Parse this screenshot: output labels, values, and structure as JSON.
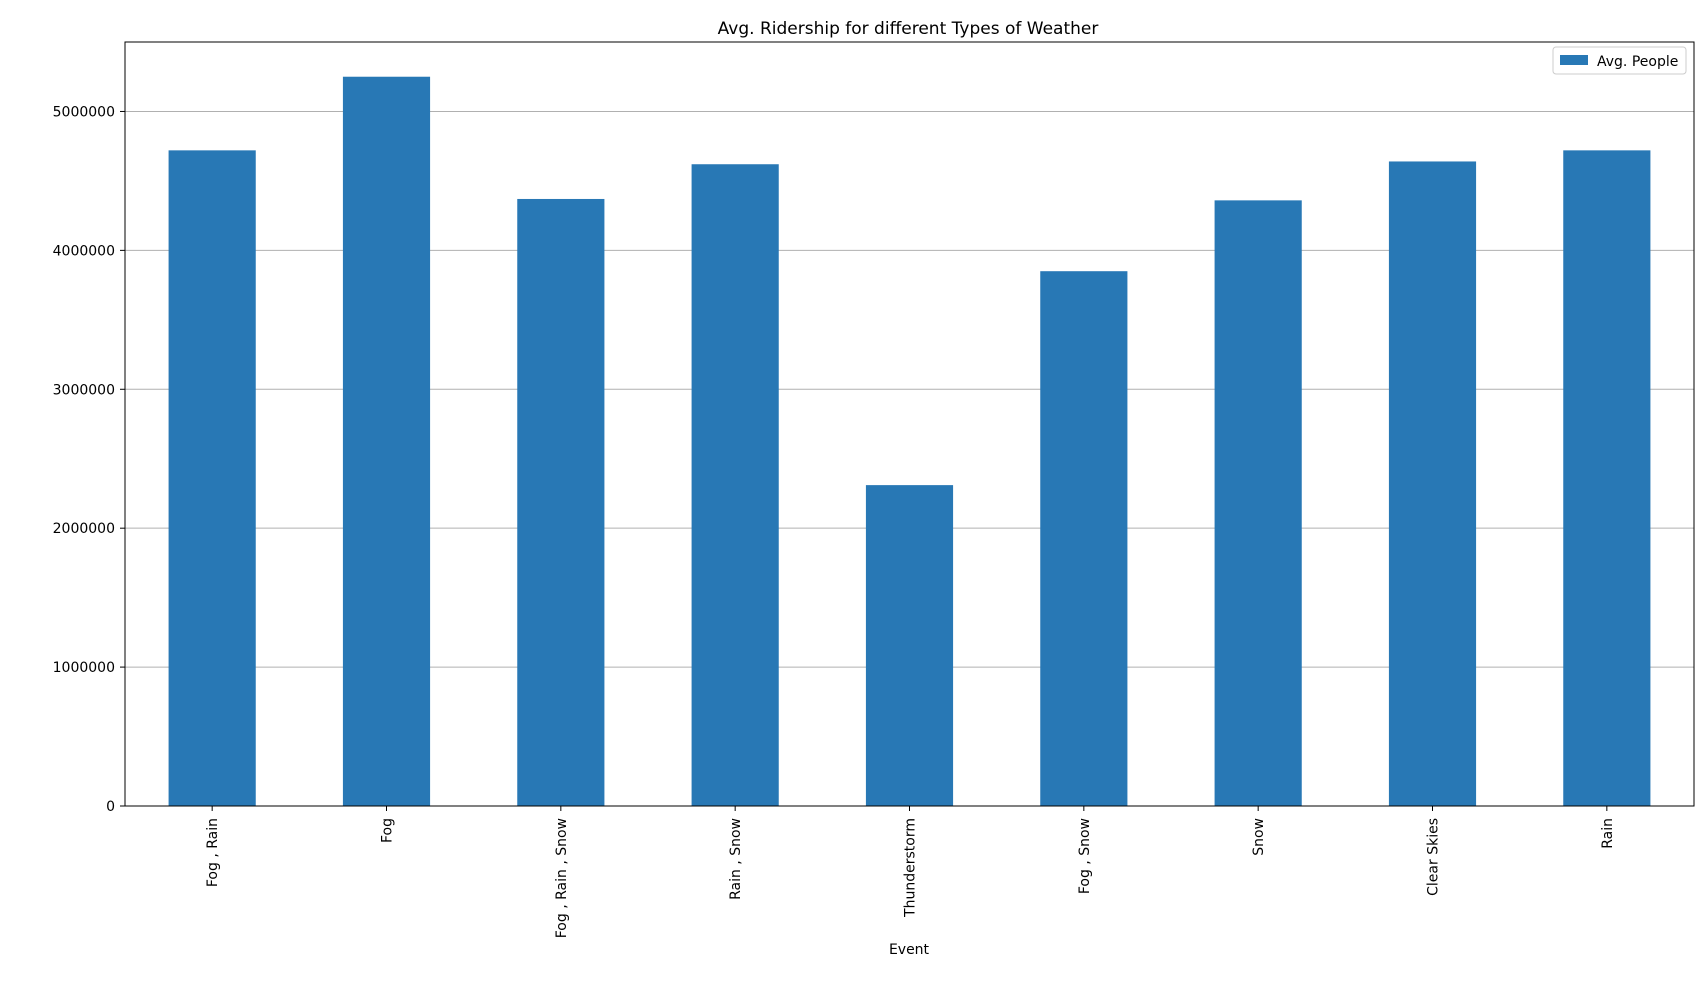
{
  "chart_data": {
    "type": "bar",
    "title": "Avg. Ridership for different Types of Weather",
    "xlabel": "Event",
    "ylabel": "",
    "categories": [
      "Fog , Rain",
      "Fog",
      "Fog , Rain , Snow",
      "Rain , Snow",
      "Thunderstorm",
      "Fog , Snow",
      "Snow",
      "Clear Skies",
      "Rain"
    ],
    "series": [
      {
        "name": "Avg. People",
        "values": [
          4720000,
          5250000,
          4370000,
          4620000,
          2310000,
          3850000,
          4360000,
          4640000,
          4720000
        ]
      }
    ],
    "ylim": [
      0,
      5500000
    ],
    "yticks": [
      0,
      1000000,
      2000000,
      3000000,
      4000000,
      5000000
    ],
    "ytick_labels": [
      "0",
      "1000000",
      "2000000",
      "3000000",
      "4000000",
      "5000000"
    ],
    "grid": "horizontal",
    "legend_position": "top-right",
    "bar_color": "#2878b5",
    "grid_color": "#b0b0b0"
  }
}
